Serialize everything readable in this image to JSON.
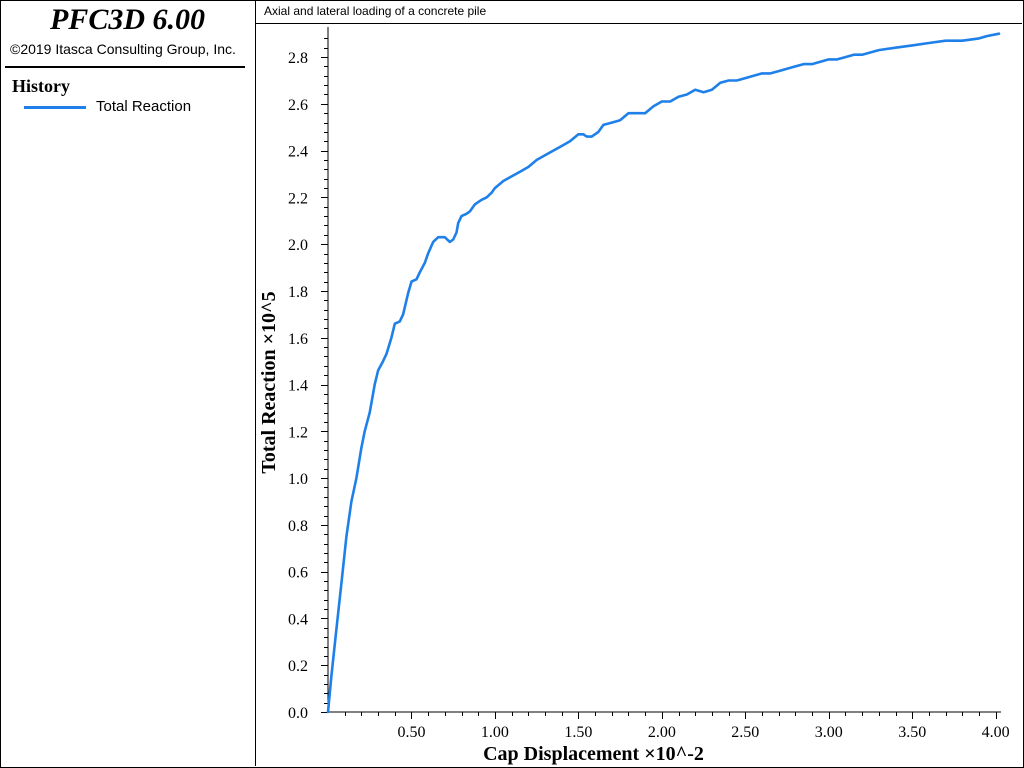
{
  "app": {
    "title": "PFC3D 6.00",
    "copyright": "©2019 Itasca Consulting Group, Inc."
  },
  "legend": {
    "heading": "History",
    "items": [
      {
        "label": "Total Reaction",
        "color": "#1e80e8"
      }
    ]
  },
  "plot": {
    "title": "Axial and lateral loading of a concrete pile"
  },
  "chart_data": {
    "type": "line",
    "xlabel": "Cap Displacement ×10^-2",
    "ylabel": "Total Reaction ×10^5",
    "xlim": [
      0.0,
      4.02
    ],
    "ylim": [
      0.0,
      2.92
    ],
    "xticks": [
      "0.50",
      "1.00",
      "1.50",
      "2.00",
      "2.50",
      "3.00",
      "3.50",
      "4.00"
    ],
    "yticks": [
      "0.0",
      "0.2",
      "0.4",
      "0.6",
      "0.8",
      "1.0",
      "1.2",
      "1.4",
      "1.6",
      "1.8",
      "2.0",
      "2.2",
      "2.4",
      "2.6",
      "2.8"
    ],
    "grid": false,
    "legend_position": "left-panel",
    "series": [
      {
        "name": "Total Reaction",
        "color": "#1e80e8",
        "x": [
          0.0,
          0.02,
          0.05,
          0.08,
          0.11,
          0.14,
          0.17,
          0.2,
          0.22,
          0.25,
          0.28,
          0.3,
          0.33,
          0.35,
          0.38,
          0.4,
          0.43,
          0.45,
          0.48,
          0.5,
          0.53,
          0.55,
          0.58,
          0.6,
          0.63,
          0.66,
          0.7,
          0.73,
          0.75,
          0.77,
          0.78,
          0.8,
          0.83,
          0.85,
          0.88,
          0.9,
          0.92,
          0.95,
          0.98,
          1.0,
          1.05,
          1.1,
          1.15,
          1.2,
          1.25,
          1.3,
          1.35,
          1.4,
          1.45,
          1.5,
          1.53,
          1.55,
          1.58,
          1.62,
          1.65,
          1.7,
          1.75,
          1.8,
          1.85,
          1.9,
          1.95,
          2.0,
          2.05,
          2.1,
          2.15,
          2.2,
          2.25,
          2.3,
          2.35,
          2.4,
          2.45,
          2.5,
          2.55,
          2.6,
          2.65,
          2.7,
          2.75,
          2.8,
          2.85,
          2.9,
          2.95,
          3.0,
          3.05,
          3.1,
          3.15,
          3.2,
          3.3,
          3.4,
          3.5,
          3.6,
          3.7,
          3.8,
          3.9,
          3.95,
          4.02
        ],
        "y": [
          0.0,
          0.15,
          0.35,
          0.55,
          0.75,
          0.9,
          1.0,
          1.13,
          1.2,
          1.28,
          1.4,
          1.46,
          1.5,
          1.53,
          1.6,
          1.66,
          1.67,
          1.7,
          1.79,
          1.84,
          1.85,
          1.88,
          1.92,
          1.96,
          2.01,
          2.03,
          2.03,
          2.01,
          2.02,
          2.05,
          2.09,
          2.12,
          2.13,
          2.14,
          2.17,
          2.18,
          2.19,
          2.2,
          2.22,
          2.24,
          2.27,
          2.29,
          2.31,
          2.33,
          2.36,
          2.38,
          2.4,
          2.42,
          2.44,
          2.47,
          2.47,
          2.46,
          2.46,
          2.48,
          2.51,
          2.52,
          2.53,
          2.56,
          2.56,
          2.56,
          2.59,
          2.61,
          2.61,
          2.63,
          2.64,
          2.66,
          2.65,
          2.66,
          2.69,
          2.7,
          2.7,
          2.71,
          2.72,
          2.73,
          2.73,
          2.74,
          2.75,
          2.76,
          2.77,
          2.77,
          2.78,
          2.79,
          2.79,
          2.8,
          2.81,
          2.81,
          2.83,
          2.84,
          2.85,
          2.86,
          2.87,
          2.87,
          2.88,
          2.89,
          2.9
        ]
      }
    ]
  }
}
